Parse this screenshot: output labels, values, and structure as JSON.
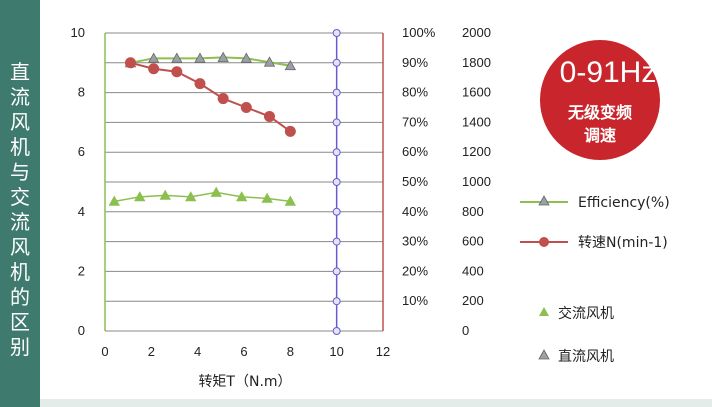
{
  "sidebar": {
    "title": "直流风机与交流风机的区别"
  },
  "badge": {
    "frequency": "0-91Hz",
    "line1": "无级变频",
    "line2": "调速",
    "color": "#c8262c"
  },
  "legend": {
    "efficiency": "Efficiency(%)",
    "speed": "转速N(min-1)",
    "ac_fan": "交流风机",
    "dc_fan": "直流风机"
  },
  "colors": {
    "efficiency": "#8cc04e",
    "speed": "#c0504d",
    "ac": "#8cc04e",
    "dc": "#9aa0a6",
    "vline": "#6a5acd",
    "pct_axis": "#c0504d",
    "sidebar": "#3f7a6e"
  },
  "chart_data": {
    "type": "line",
    "xlabel": "转矩T（N.m）",
    "x_ticks": [
      "0",
      "2",
      "4",
      "6",
      "8",
      "10",
      "12"
    ],
    "xlim": [
      0,
      12
    ],
    "y_left": {
      "ticks": [
        "0",
        "2",
        "4",
        "6",
        "8",
        "10"
      ],
      "lim": [
        0,
        10
      ]
    },
    "y_pct": {
      "ticks": [
        "10%",
        "20%",
        "30%",
        "40%",
        "50%",
        "60%",
        "70%",
        "80%",
        "90%",
        "100%"
      ],
      "lim": [
        0,
        100
      ]
    },
    "y_speed": {
      "ticks": [
        "0",
        "200",
        "400",
        "600",
        "800",
        "1000",
        "1200",
        "1400",
        "1600",
        "1800",
        "2000"
      ],
      "lim": [
        0,
        2000
      ]
    },
    "series": [
      {
        "key": "dc_efficiency",
        "axis": "left",
        "marker": "triangle",
        "x": [
          1.1,
          2.1,
          3.1,
          4.1,
          5.1,
          6.1,
          7.1,
          8.0
        ],
        "y": [
          9.0,
          9.15,
          9.15,
          9.15,
          9.18,
          9.15,
          9.02,
          8.9
        ]
      },
      {
        "key": "dc_speed",
        "axis": "left",
        "marker": "circle",
        "x": [
          1.1,
          2.1,
          3.1,
          4.1,
          5.1,
          6.1,
          7.1,
          8.0
        ],
        "y": [
          9.0,
          8.8,
          8.7,
          8.3,
          7.8,
          7.5,
          7.2,
          6.7
        ]
      },
      {
        "key": "ac_efficiency",
        "axis": "left",
        "marker": "triangle",
        "x": [
          0.4,
          1.5,
          2.6,
          3.7,
          4.8,
          5.9,
          7.0,
          8.0
        ],
        "y": [
          4.35,
          4.5,
          4.55,
          4.5,
          4.65,
          4.5,
          4.45,
          4.35
        ]
      },
      {
        "key": "vertical_10",
        "axis": "left",
        "marker": "circle",
        "x": [
          10,
          10,
          10,
          10,
          10,
          10,
          10,
          10,
          10,
          10,
          10
        ],
        "y": [
          0,
          1,
          2,
          3,
          4,
          5,
          6,
          7,
          8,
          9,
          10
        ]
      }
    ]
  }
}
